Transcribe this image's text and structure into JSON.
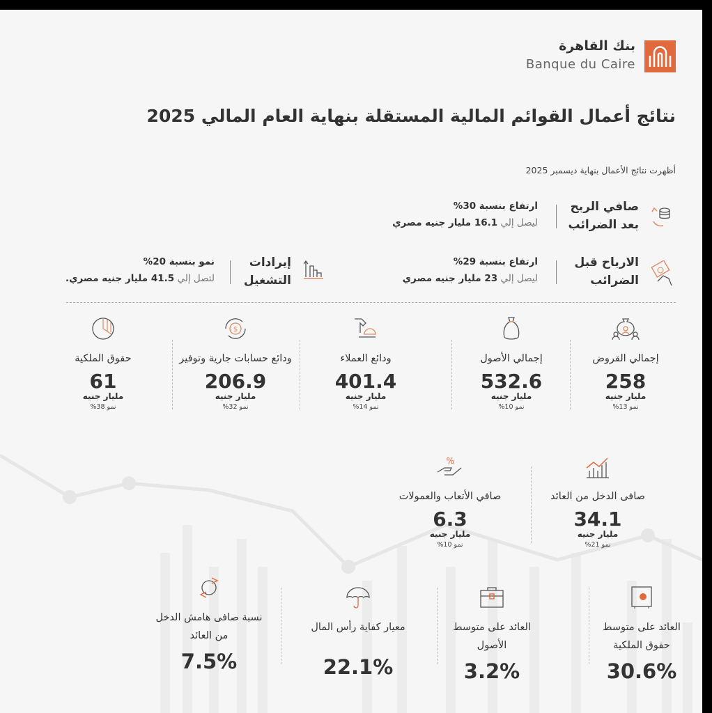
{
  "brand": {
    "name_ar": "بنك القاهرة",
    "name_en": "Banque du Caire",
    "accent": "#e06a3e"
  },
  "title": "نتائج أعمال القوائم المالية المستقلة بنهاية العام المالي 2025",
  "subtitle": "أظهرت نتائج الأعمال بنهاية ديسمبر 2025",
  "highlights": [
    {
      "label": "صافي الربح بعد الضرائب",
      "change": "ارتفاع بنسبة 30%",
      "prefix": "ليصل إلي",
      "value": "16.1 مليار جنيه مصري",
      "icon": "coins-growth-icon"
    },
    {
      "label": "الارباح قبل الضرائب",
      "change": "ارتفاع بنسبة 29%",
      "prefix": "ليصل إلي",
      "value": "23 مليار جنيه مصري",
      "icon": "money-hand-icon"
    },
    {
      "label": "إيرادات التشغيل",
      "change": "نمو بنسبة 20%",
      "prefix": "لتصل إلي",
      "value": "41.5 مليار جنيه مصري.",
      "icon": "bar-chart-up-icon"
    }
  ],
  "stats": [
    {
      "label": "إجمالي القروض",
      "value": "258",
      "unit": "مليار جنيه",
      "growth": "نمو 13%"
    },
    {
      "label": "إجمالي الأصول",
      "value": "532.6",
      "unit": "مليار جنيه",
      "growth": "نمو 10%"
    },
    {
      "label": "ودائع العملاء",
      "value": "401.4",
      "unit": "مليار جنيه",
      "growth": "نمو 14%"
    },
    {
      "label": "ودائع حسابات جارية وتوفير",
      "value": "206.9",
      "unit": "مليار جنيه",
      "growth": "نمو 32%"
    },
    {
      "label": "حقوق الملكية",
      "value": "61",
      "unit": "مليار جنيه",
      "growth": "نمو 38%"
    },
    {
      "label": "صافى الدخل من العائد",
      "value": "34.1",
      "unit": "مليار جنيه",
      "growth": "نمو 21%"
    },
    {
      "label": "صافي الأتعاب والعمولات",
      "value": "6.3",
      "unit": "مليار جنيه",
      "growth": "نمو 10%"
    }
  ],
  "ratios": [
    {
      "label": "العائد على متوسط حقوق الملكية",
      "value": "30.6%"
    },
    {
      "label": "العائد على متوسط الأصول",
      "value": "3.2%"
    },
    {
      "label": "معيار كفاية رأس المال",
      "value": "22.1%"
    },
    {
      "label": "نسبة صافى هامش الدخل من العائد",
      "value": "7.5%"
    }
  ]
}
